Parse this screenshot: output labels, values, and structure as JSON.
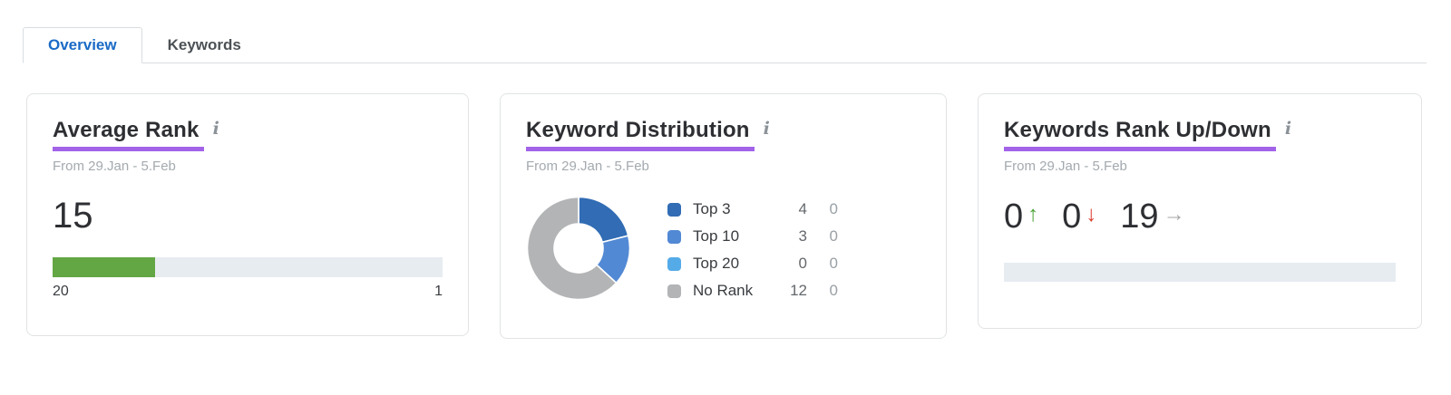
{
  "tabs": [
    {
      "label": "Overview",
      "active": true
    },
    {
      "label": "Keywords",
      "active": false
    }
  ],
  "icons": {
    "info": "i"
  },
  "colors": {
    "active_tab_blue": "#1a6ac6",
    "title_underline_purple": "#a263e8",
    "bar_green": "#63a644",
    "bar_track": "#e7ecf1",
    "rank_up_green": "#4aa437",
    "rank_down_red": "#dd3b2e",
    "rank_unchanged_gray": "#a6a6a6"
  },
  "cards": {
    "average_rank": {
      "title": "Average Rank",
      "date_range": "From 29.Jan - 5.Feb",
      "value": 15,
      "scale_max": 20,
      "scale_min": 1,
      "scale_left_label": "20",
      "scale_right_label": "1"
    },
    "keyword_distribution": {
      "title": "Keyword Distribution",
      "date_range": "From 29.Jan - 5.Feb",
      "chart_data": {
        "type": "pie",
        "donut": true,
        "start_angle": "top",
        "direction": "clockwise",
        "categories": [
          "Top 3",
          "Top 10",
          "Top 20",
          "No Rank"
        ],
        "values": [
          4,
          3,
          0,
          12
        ],
        "secondary_values": [
          0,
          0,
          0,
          0
        ],
        "colors": [
          "#316cb4",
          "#5289d4",
          "#55abe8",
          "#b2b4b6"
        ],
        "total": 19
      }
    },
    "keywords_rank_up_down": {
      "title": "Keywords Rank Up/Down",
      "date_range": "From 29.Jan - 5.Feb",
      "up": {
        "value": "0",
        "arrow": "↑"
      },
      "down": {
        "value": "0",
        "arrow": "↓"
      },
      "unchanged": {
        "value": "19",
        "arrow": "→"
      }
    }
  }
}
